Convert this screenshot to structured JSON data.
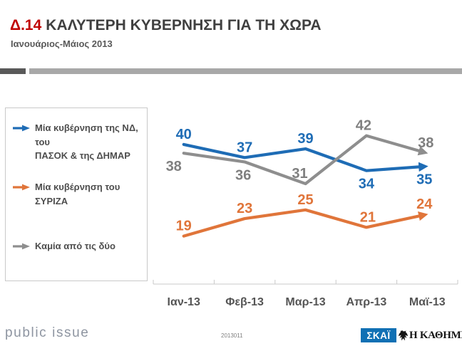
{
  "header": {
    "tag": "Δ.14",
    "tag_color": "#C00000",
    "title": "ΚΑΛΥΤΕΡΗ ΚΥΒΕΡΝΗΣΗ ΓΙΑ ΤΗ ΧΩΡΑ",
    "subtitle": "Ιανουάριος-Μάιος 2013"
  },
  "legend": {
    "items": [
      {
        "label": "Μία κυβέρνηση της ΝΔ, του\nΠΑΣΟΚ & της ΔΗΜΑΡ",
        "color": "#1E6CB5"
      },
      {
        "label": "Μία κυβέρνηση του ΣΥΡΙΖΑ",
        "color": "#E0753A"
      },
      {
        "label": "Καμία από τις δύο",
        "color": "#8E8E8E"
      }
    ]
  },
  "chart_data": {
    "type": "line",
    "title": "Δ.14 ΚΑΛΥΤΕΡΗ ΚΥΒΕΡΝΗΣΗ ΓΙΑ ΤΗ ΧΩΡΑ",
    "subtitle": "Ιανουάριος-Μάιος 2013",
    "categories": [
      "Ιαν-13",
      "Φεβ-13",
      "Μαρ-13",
      "Απρ-13",
      "Μαϊ-13"
    ],
    "series": [
      {
        "name": "Μία κυβέρνηση της ΝΔ, του ΠΑΣΟΚ & της ΔΗΜΑΡ",
        "color": "#1E6CB5",
        "label_color": "#1E6CB5",
        "values": [
          40,
          37,
          39,
          34,
          35
        ],
        "label_positions": [
          "above",
          "above",
          "above",
          "below",
          "below"
        ]
      },
      {
        "name": "Μία κυβέρνηση του ΣΥΡΙΖΑ",
        "color": "#E0753A",
        "label_color": "#E0753A",
        "values": [
          19,
          23,
          25,
          21,
          24
        ],
        "label_positions": [
          "above",
          "above",
          "above",
          "above",
          "above"
        ]
      },
      {
        "name": "Καμία από τις δύο",
        "color": "#8E8E8E",
        "label_color": "#7F7F7F",
        "values": [
          38,
          36,
          31,
          42,
          38
        ],
        "label_positions": [
          "below",
          "below",
          "above",
          "above",
          "above"
        ]
      }
    ],
    "ylim": [
      8,
      47
    ],
    "grid": false,
    "y_axis_visible": false,
    "legend_position": "left",
    "data_labels": true,
    "arrow_end_markers": true
  },
  "footer": {
    "brand": "public issue",
    "code": "2013011",
    "skai_label": "ΣΚΑΪ",
    "skai_color": "#1070B4",
    "kathimerini_label": "Η ΚΑΘΗΜΕΡΙΝΗ"
  }
}
